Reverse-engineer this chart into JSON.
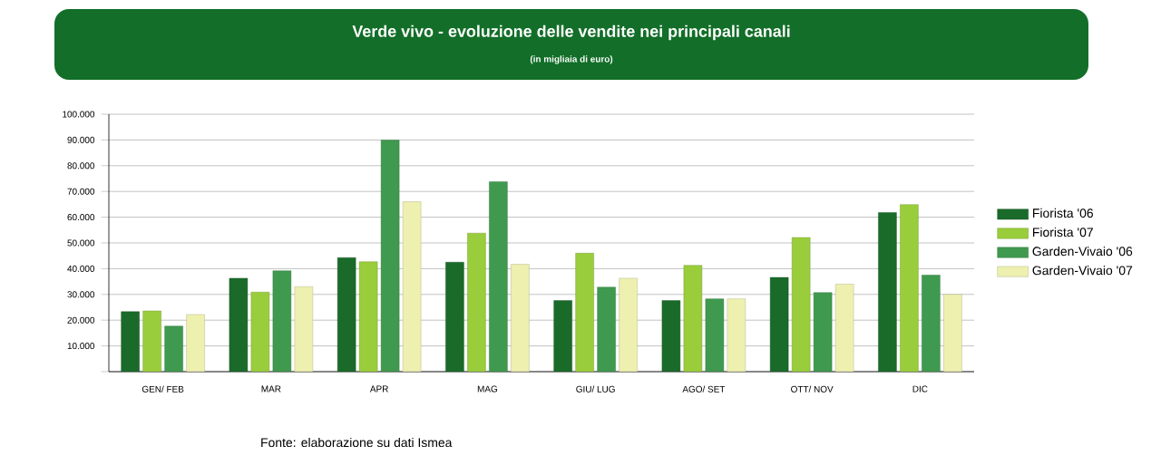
{
  "chart_data": {
    "type": "bar",
    "title": "Verde vivo - evoluzione delle vendite nei principali canali",
    "subtitle": "(in migliaia di euro)",
    "categories": [
      "GEN/ FEB",
      "MAR",
      "APR",
      "MAG",
      "GIU/ LUG",
      "AGO/ SET",
      "OTT/ NOV",
      "DIC"
    ],
    "series": [
      {
        "name": "Fiorista '06",
        "color": "#1a6b2a",
        "values": [
          23300,
          36300,
          44300,
          42500,
          27600,
          27600,
          36600,
          61800
        ]
      },
      {
        "name": "Fiorista '07",
        "color": "#9acd3c",
        "values": [
          23600,
          30900,
          42700,
          53800,
          46000,
          41300,
          52100,
          64900
        ]
      },
      {
        "name": "Garden-Vivaio '06",
        "color": "#3f9a4f",
        "values": [
          17700,
          39200,
          90000,
          73800,
          32800,
          28300,
          30700,
          37500
        ]
      },
      {
        "name": "Garden-Vivaio '07",
        "color": "#eef0b0",
        "values": [
          22200,
          33000,
          66000,
          41700,
          36300,
          28300,
          34000,
          30000
        ]
      }
    ],
    "ylim": [
      0,
      100000
    ],
    "yticks": [
      {
        "value": 0,
        "label": null
      },
      {
        "value": 10000,
        "label": "10.000"
      },
      {
        "value": 20000,
        "label": "20.000"
      },
      {
        "value": 30000,
        "label": "30.000"
      },
      {
        "value": 40000,
        "label": "40.000"
      },
      {
        "value": 50000,
        "label": "50.000"
      },
      {
        "value": 60000,
        "label": "60.000"
      },
      {
        "value": 70000,
        "label": "70.000"
      },
      {
        "value": 80000,
        "label": "80.000"
      },
      {
        "value": 90000,
        "label": "90.000"
      },
      {
        "value": 100000,
        "label": "100.000"
      }
    ],
    "grid": "y",
    "legend": "right",
    "annotations": [
      "Fonte: elaborazione su dati Ismea"
    ]
  }
}
